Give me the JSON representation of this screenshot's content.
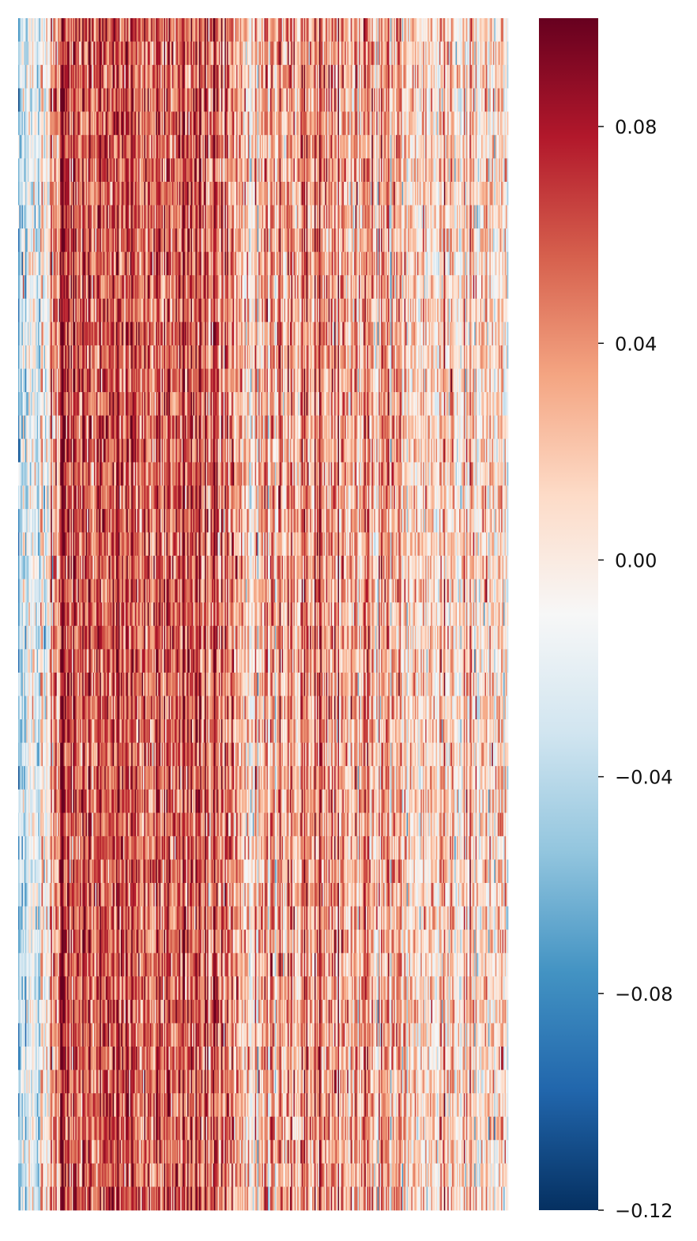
{
  "chart_data": {
    "type": "heatmap",
    "title": "",
    "xlabel": "",
    "ylabel": "",
    "x_tick_labels": [],
    "y_tick_labels": [],
    "colormap": "RdBu_r",
    "colormap_stops": [
      "#053061",
      "#2166ac",
      "#4393c3",
      "#92c5de",
      "#d1e5f0",
      "#f7f7f7",
      "#fddbc7",
      "#f4a582",
      "#d6604d",
      "#b2182b",
      "#67001f"
    ],
    "value_range": [
      -0.12,
      0.1
    ],
    "colorbar": {
      "ticks": [
        0.08,
        0.04,
        0.0,
        -0.04,
        -0.08,
        -0.12
      ],
      "tick_labels": [
        "0.08",
        "0.04",
        "0.00",
        "−0.04",
        "−0.08",
        "−0.12"
      ]
    },
    "n_rows": 51,
    "n_cols": 420,
    "column_mean_profile": {
      "x_fraction": [
        0.0,
        0.04,
        0.09,
        0.13,
        0.2,
        0.28,
        0.35,
        0.42,
        0.48,
        0.55,
        0.62,
        0.7,
        0.8,
        0.9,
        1.0
      ],
      "mean_value": [
        -0.035,
        -0.02,
        0.055,
        0.06,
        0.055,
        0.05,
        0.058,
        0.055,
        0.02,
        0.032,
        0.035,
        0.025,
        0.018,
        0.01,
        0.005
      ]
    },
    "noise_sd": 0.028,
    "grid": false,
    "legend": "colorbar-right"
  }
}
